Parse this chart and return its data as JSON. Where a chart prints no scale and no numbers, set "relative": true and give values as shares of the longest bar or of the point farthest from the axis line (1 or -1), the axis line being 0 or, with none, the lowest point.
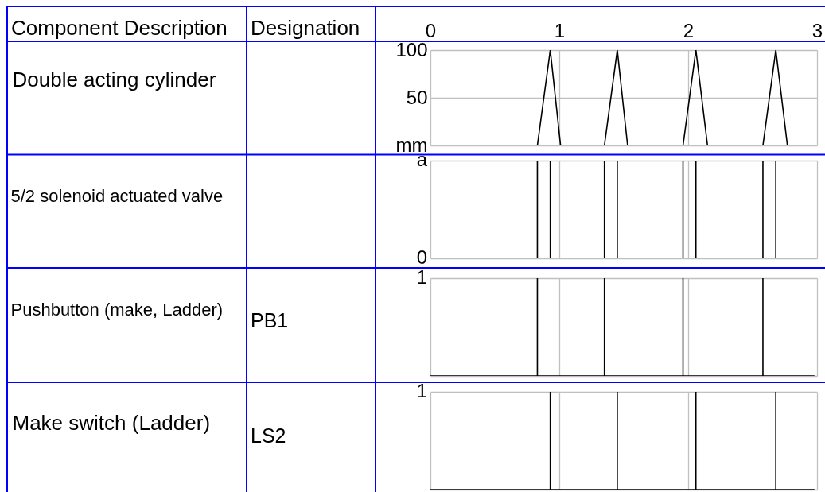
{
  "chart_data": [
    {
      "type": "line",
      "ylabel": "Double acting cylinder",
      "annotations": [
        "Component Description",
        "Designation"
      ],
      "x": [
        0,
        0.83,
        0.93,
        1.01,
        1.35,
        1.45,
        1.53,
        1.96,
        2.06,
        2.15,
        2.58,
        2.68,
        2.77,
        2.98
      ],
      "xlim": [
        0,
        3
      ],
      "xticks": [
        0,
        1,
        2,
        3
      ],
      "ylim": [
        0,
        100
      ],
      "yticks": [
        {
          "value": 0,
          "label": "mm"
        },
        50,
        100
      ],
      "series": [
        {
          "color": "#000000",
          "values": [
            0,
            0,
            100,
            0,
            0,
            100,
            0,
            0,
            100,
            0,
            0,
            100,
            0,
            0
          ]
        }
      ],
      "grid": true
    },
    {
      "type": "step",
      "ylabel": "5/2 solenoid actuated valve",
      "annotations": [
        "a",
        "0"
      ],
      "relative": true,
      "x": [
        0,
        0.83,
        0.93,
        1.35,
        1.45,
        1.96,
        2.06,
        2.58,
        2.68,
        2.98
      ],
      "xlim": [
        0,
        3
      ],
      "xticks": [
        0,
        1,
        2,
        3
      ],
      "series": [
        {
          "color": "#000000",
          "values": [
            0,
            1,
            0,
            1,
            0,
            1,
            0,
            1,
            0,
            0
          ]
        }
      ],
      "grid": true,
      "tick_labels": false
    },
    {
      "type": "line",
      "ylabel": "Pushbutton (make, Ladder)",
      "annotations": [
        "1",
        "PB1"
      ],
      "relative": true,
      "x": [
        0,
        0.83,
        0.83,
        0.83,
        1.35,
        1.35,
        1.35,
        1.96,
        1.96,
        1.96,
        2.58,
        2.58,
        2.58,
        2.98
      ],
      "xlim": [
        0,
        3
      ],
      "xticks": [
        0,
        1,
        2,
        3
      ],
      "series": [
        {
          "color": "#000000",
          "values": [
            0,
            0,
            1,
            0,
            0,
            1,
            0,
            0,
            1,
            0,
            0,
            1,
            0,
            0
          ]
        }
      ],
      "grid": true,
      "tick_labels": false
    },
    {
      "type": "line",
      "ylabel": "Make switch (Ladder)",
      "annotations": [
        "1",
        "LS2"
      ],
      "relative": true,
      "x": [
        0,
        0.93,
        0.93,
        0.93,
        1.45,
        1.45,
        1.45,
        2.06,
        2.06,
        2.06,
        2.68,
        2.68,
        2.68,
        2.98
      ],
      "xlim": [
        0,
        3
      ],
      "xticks": [
        0,
        1,
        2,
        3
      ],
      "series": [
        {
          "color": "#000000",
          "values": [
            0,
            0,
            1,
            0,
            0,
            1,
            0,
            0,
            1,
            0,
            0,
            1,
            0,
            0
          ]
        }
      ],
      "grid": true,
      "tick_labels": false
    }
  ]
}
